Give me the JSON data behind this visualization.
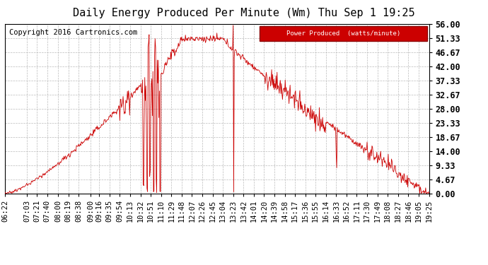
{
  "title": "Daily Energy Produced Per Minute (Wm) Thu Sep 1 19:25",
  "copyright": "Copyright 2016 Cartronics.com",
  "legend_label": "Power Produced  (watts/minute)",
  "legend_bg": "#cc0000",
  "legend_fg": "#ffffff",
  "line_color": "#cc0000",
  "bg_color": "#ffffff",
  "grid_color": "#bbbbbb",
  "ymin": 0.0,
  "ymax": 56.0,
  "yticks": [
    0.0,
    4.67,
    9.33,
    14.0,
    18.67,
    23.33,
    28.0,
    32.67,
    37.33,
    42.0,
    46.67,
    51.33,
    56.0
  ],
  "xtick_labels": [
    "06:22",
    "07:03",
    "07:21",
    "07:40",
    "08:00",
    "08:19",
    "08:38",
    "09:00",
    "09:16",
    "09:35",
    "09:54",
    "10:13",
    "10:32",
    "10:51",
    "11:10",
    "11:29",
    "11:48",
    "12:07",
    "12:26",
    "12:45",
    "13:04",
    "13:23",
    "13:42",
    "14:01",
    "14:20",
    "14:39",
    "14:58",
    "15:17",
    "15:36",
    "15:55",
    "16:14",
    "16:33",
    "16:52",
    "17:11",
    "17:30",
    "17:49",
    "18:08",
    "18:27",
    "18:46",
    "19:05",
    "19:25"
  ],
  "title_fontsize": 11,
  "tick_fontsize": 7.5,
  "ytick_fontsize": 8.5,
  "copyright_fontsize": 7.5
}
